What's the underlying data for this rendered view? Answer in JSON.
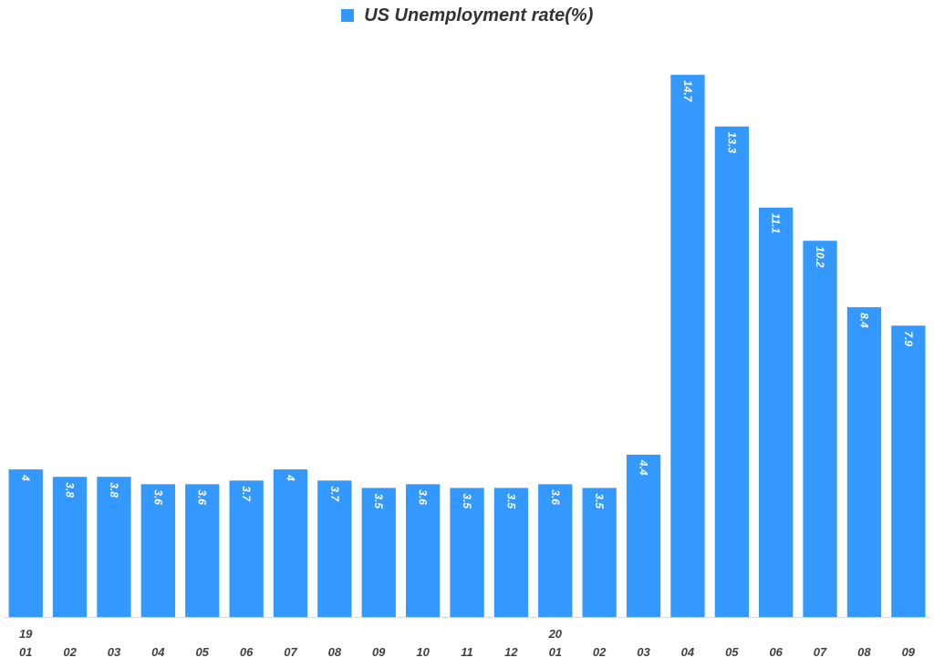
{
  "chart_data": {
    "type": "bar",
    "title": "",
    "xlabel": "",
    "ylabel": "",
    "legend": {
      "entries": [
        "US Unemployment rate(%)"
      ],
      "placement": "top-center"
    },
    "categories": [
      "01",
      "02",
      "03",
      "04",
      "05",
      "06",
      "07",
      "08",
      "09",
      "10",
      "11",
      "12",
      "01",
      "02",
      "03",
      "04",
      "05",
      "06",
      "07",
      "08",
      "09"
    ],
    "year_labels": [
      "19",
      "",
      "",
      "",
      "",
      "",
      "",
      "",
      "",
      "",
      "",
      "",
      "20",
      "",
      "",
      "",
      "",
      "",
      "",
      "",
      ""
    ],
    "series": [
      {
        "name": "US Unemployment rate(%)",
        "values": [
          4,
          3.8,
          3.8,
          3.6,
          3.6,
          3.7,
          4,
          3.7,
          3.5,
          3.6,
          3.5,
          3.5,
          3.6,
          3.5,
          4.4,
          14.7,
          13.3,
          11.1,
          10.2,
          8.4,
          7.9
        ],
        "color": "#3399ff"
      }
    ],
    "ylim": [
      0,
      15
    ],
    "grid": false,
    "data_labels": true
  }
}
